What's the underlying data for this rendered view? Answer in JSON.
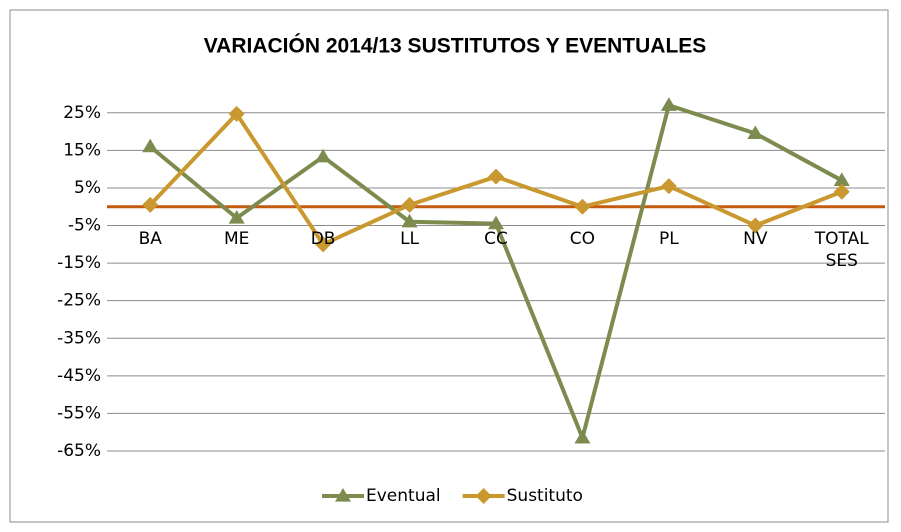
{
  "chart_data": {
    "type": "line",
    "title": "VARIACIÓN 2014/13 SUSTITUTOS Y EVENTUALES",
    "categories": [
      "BA",
      "ME",
      "DB",
      "LL",
      "CC",
      "CO",
      "PL",
      "NV",
      "TOTAL SES"
    ],
    "series": [
      {
        "name": "Eventual",
        "color": "#7d8c4e",
        "marker": "triangle",
        "values": [
          16,
          -3,
          13.3,
          -4,
          -4.5,
          -61.5,
          27,
          19.5,
          7
        ]
      },
      {
        "name": "Sustituto",
        "color": "#c9982f",
        "marker": "diamond",
        "values": [
          0.5,
          24.7,
          -10,
          0.5,
          8,
          0,
          5.5,
          -5,
          4
        ]
      }
    ],
    "ylim": [
      -65,
      30
    ],
    "yticks": [
      {
        "value": 25,
        "label": "25%"
      },
      {
        "value": 15,
        "label": "15%"
      },
      {
        "value": 5,
        "label": "5%"
      },
      {
        "value": -5,
        "label": "-5%"
      },
      {
        "value": -15,
        "label": "-15%"
      },
      {
        "value": -25,
        "label": "-25%"
      },
      {
        "value": -35,
        "label": "-35%"
      },
      {
        "value": -45,
        "label": "-45%"
      },
      {
        "value": -55,
        "label": "-55%"
      },
      {
        "value": -65,
        "label": "-65%"
      }
    ],
    "grid": true,
    "zero_line_color": "#c55a11",
    "legend": "bottom"
  }
}
